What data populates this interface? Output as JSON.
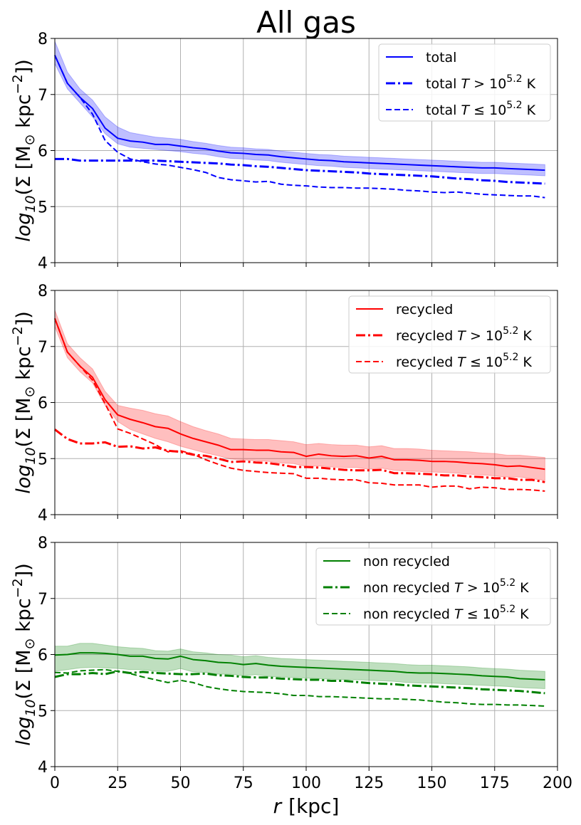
{
  "title": "All gas",
  "xlabel_r": "r",
  "xlabel_unit": "[kpc]",
  "ylabel": {
    "prefix_log": "log",
    "prefix_sub": "10",
    "body": "(Σ [M",
    "sun": "⊙",
    "unit": " kpc",
    "exp": "−2",
    "close": "])"
  },
  "x_ticks": [
    "0",
    "25",
    "50",
    "75",
    "100",
    "125",
    "150",
    "175",
    "200"
  ],
  "y_ticks": [
    "4",
    "5",
    "6",
    "7",
    "8"
  ],
  "temp_exponent": "5.2",
  "chart_data": [
    {
      "type": "line",
      "panel": "total",
      "color": "#0000ff",
      "xlim": [
        0,
        200
      ],
      "ylim": [
        4,
        8
      ],
      "grid": true,
      "legend_position": "top-right",
      "x": [
        0,
        5,
        10,
        15,
        20,
        25,
        30,
        35,
        40,
        45,
        50,
        55,
        60,
        65,
        70,
        75,
        80,
        85,
        90,
        95,
        100,
        105,
        110,
        115,
        120,
        125,
        130,
        135,
        140,
        145,
        150,
        155,
        160,
        165,
        170,
        175,
        180,
        185,
        190,
        195
      ],
      "series": [
        {
          "name": "total",
          "style": "solid",
          "legend": [
            "total",
            "",
            ""
          ],
          "values": [
            7.7,
            7.2,
            6.95,
            6.75,
            6.4,
            6.22,
            6.17,
            6.15,
            6.11,
            6.11,
            6.08,
            6.05,
            6.03,
            5.99,
            5.96,
            5.95,
            5.93,
            5.92,
            5.89,
            5.87,
            5.85,
            5.83,
            5.82,
            5.8,
            5.79,
            5.78,
            5.77,
            5.76,
            5.75,
            5.74,
            5.73,
            5.72,
            5.71,
            5.7,
            5.69,
            5.69,
            5.68,
            5.67,
            5.66,
            5.65
          ]
        },
        {
          "name": "total T > 10^5.2 K",
          "style": "dashdot",
          "legend": [
            "total ",
            "T",
            " > 10"
          ],
          "values": [
            5.85,
            5.85,
            5.82,
            5.82,
            5.82,
            5.82,
            5.82,
            5.82,
            5.82,
            5.81,
            5.8,
            5.79,
            5.78,
            5.77,
            5.75,
            5.74,
            5.72,
            5.71,
            5.69,
            5.67,
            5.65,
            5.64,
            5.63,
            5.62,
            5.61,
            5.59,
            5.58,
            5.57,
            5.56,
            5.55,
            5.54,
            5.52,
            5.5,
            5.49,
            5.47,
            5.46,
            5.44,
            5.43,
            5.42,
            5.41
          ]
        },
        {
          "name": "total T ≤ 10^5.2 K",
          "style": "dashed",
          "legend": [
            "total ",
            "T",
            " ≤ 10"
          ],
          "values": [
            7.7,
            7.2,
            6.95,
            6.65,
            6.18,
            5.97,
            5.85,
            5.8,
            5.76,
            5.74,
            5.7,
            5.66,
            5.61,
            5.52,
            5.48,
            5.46,
            5.44,
            5.45,
            5.4,
            5.38,
            5.37,
            5.35,
            5.34,
            5.34,
            5.33,
            5.33,
            5.32,
            5.31,
            5.29,
            5.28,
            5.26,
            5.25,
            5.26,
            5.24,
            5.22,
            5.21,
            5.2,
            5.19,
            5.19,
            5.16
          ]
        }
      ],
      "band": {
        "lower": [
          7.55,
          7.1,
          6.85,
          6.6,
          6.3,
          6.12,
          6.06,
          6.04,
          6.02,
          6.0,
          5.98,
          5.95,
          5.93,
          5.89,
          5.86,
          5.85,
          5.83,
          5.82,
          5.79,
          5.77,
          5.75,
          5.73,
          5.72,
          5.7,
          5.69,
          5.68,
          5.67,
          5.66,
          5.65,
          5.64,
          5.63,
          5.62,
          5.61,
          5.6,
          5.59,
          5.59,
          5.58,
          5.57,
          5.56,
          5.55
        ],
        "upper": [
          7.95,
          7.4,
          7.1,
          6.9,
          6.6,
          6.42,
          6.32,
          6.28,
          6.24,
          6.22,
          6.2,
          6.16,
          6.13,
          6.09,
          6.06,
          6.05,
          6.03,
          6.02,
          5.99,
          5.97,
          5.95,
          5.93,
          5.92,
          5.9,
          5.89,
          5.88,
          5.87,
          5.86,
          5.85,
          5.84,
          5.83,
          5.82,
          5.81,
          5.8,
          5.79,
          5.79,
          5.78,
          5.77,
          5.76,
          5.75
        ]
      }
    },
    {
      "type": "line",
      "panel": "recycled",
      "color": "#ff0000",
      "xlim": [
        0,
        200
      ],
      "ylim": [
        4,
        8
      ],
      "grid": true,
      "legend_position": "top-right",
      "x": [
        0,
        5,
        10,
        15,
        20,
        25,
        30,
        35,
        40,
        45,
        50,
        55,
        60,
        65,
        70,
        75,
        80,
        85,
        90,
        95,
        100,
        105,
        110,
        115,
        120,
        125,
        130,
        135,
        140,
        145,
        150,
        155,
        160,
        165,
        170,
        175,
        180,
        185,
        190,
        195
      ],
      "series": [
        {
          "name": "recycled",
          "style": "solid",
          "legend": [
            "recycled",
            "",
            ""
          ],
          "values": [
            7.5,
            6.9,
            6.65,
            6.45,
            6.05,
            5.78,
            5.7,
            5.64,
            5.57,
            5.54,
            5.44,
            5.36,
            5.3,
            5.24,
            5.16,
            5.16,
            5.15,
            5.15,
            5.12,
            5.11,
            5.04,
            5.08,
            5.05,
            5.04,
            5.05,
            5.01,
            5.04,
            4.98,
            4.98,
            4.97,
            4.95,
            4.95,
            4.94,
            4.92,
            4.91,
            4.89,
            4.86,
            4.87,
            4.84,
            4.81
          ]
        },
        {
          "name": "recycled T > 10^5.2 K",
          "style": "dashdot",
          "legend": [
            "recycled ",
            "T",
            " > 10"
          ],
          "values": [
            5.52,
            5.35,
            5.27,
            5.27,
            5.29,
            5.21,
            5.22,
            5.18,
            5.2,
            5.14,
            5.12,
            5.07,
            5.05,
            5.0,
            4.94,
            4.95,
            4.93,
            4.92,
            4.89,
            4.85,
            4.85,
            4.84,
            4.82,
            4.8,
            4.79,
            4.79,
            4.8,
            4.74,
            4.74,
            4.73,
            4.72,
            4.7,
            4.7,
            4.68,
            4.67,
            4.65,
            4.65,
            4.62,
            4.62,
            4.58
          ]
        },
        {
          "name": "recycled T ≤ 10^5.2 K",
          "style": "dashed",
          "legend": [
            "recycled ",
            "T",
            " ≤ 10"
          ],
          "values": [
            7.5,
            6.9,
            6.65,
            6.4,
            5.98,
            5.53,
            5.45,
            5.35,
            5.25,
            5.12,
            5.14,
            5.08,
            4.98,
            4.9,
            4.83,
            4.79,
            4.77,
            4.75,
            4.74,
            4.73,
            4.65,
            4.65,
            4.63,
            4.62,
            4.62,
            4.57,
            4.56,
            4.53,
            4.53,
            4.53,
            4.49,
            4.51,
            4.51,
            4.46,
            4.49,
            4.48,
            4.45,
            4.45,
            4.44,
            4.42
          ]
        }
      ],
      "band": {
        "lower": [
          7.35,
          6.8,
          6.55,
          6.35,
          5.95,
          5.66,
          5.52,
          5.44,
          5.36,
          5.3,
          5.22,
          5.16,
          5.1,
          5.05,
          4.99,
          4.98,
          4.96,
          4.95,
          4.92,
          4.91,
          4.86,
          4.87,
          4.85,
          4.84,
          4.84,
          4.81,
          4.83,
          4.79,
          4.78,
          4.77,
          4.76,
          4.75,
          4.74,
          4.72,
          4.71,
          4.69,
          4.67,
          4.67,
          4.64,
          4.61
        ],
        "upper": [
          7.65,
          7.05,
          6.8,
          6.6,
          6.2,
          5.95,
          5.9,
          5.86,
          5.8,
          5.76,
          5.66,
          5.57,
          5.5,
          5.44,
          5.36,
          5.35,
          5.34,
          5.34,
          5.32,
          5.3,
          5.25,
          5.27,
          5.25,
          5.24,
          5.24,
          5.21,
          5.23,
          5.18,
          5.18,
          5.17,
          5.15,
          5.14,
          5.13,
          5.12,
          5.1,
          5.09,
          5.06,
          5.06,
          5.04,
          5.02
        ]
      }
    },
    {
      "type": "line",
      "panel": "non recycled",
      "color": "#008000",
      "xlim": [
        0,
        200
      ],
      "ylim": [
        4,
        8
      ],
      "grid": true,
      "legend_position": "top-right",
      "x": [
        0,
        5,
        10,
        15,
        20,
        25,
        30,
        35,
        40,
        45,
        50,
        55,
        60,
        65,
        70,
        75,
        80,
        85,
        90,
        95,
        100,
        105,
        110,
        115,
        120,
        125,
        130,
        135,
        140,
        145,
        150,
        155,
        160,
        165,
        170,
        175,
        180,
        185,
        190,
        195
      ],
      "series": [
        {
          "name": "non recycled",
          "style": "solid",
          "legend": [
            "non recycled",
            "",
            ""
          ],
          "values": [
            5.99,
            6.0,
            6.03,
            6.03,
            6.02,
            6.0,
            5.97,
            5.97,
            5.93,
            5.92,
            5.97,
            5.91,
            5.89,
            5.86,
            5.85,
            5.82,
            5.84,
            5.81,
            5.79,
            5.78,
            5.77,
            5.76,
            5.75,
            5.74,
            5.73,
            5.72,
            5.71,
            5.7,
            5.68,
            5.67,
            5.67,
            5.66,
            5.65,
            5.64,
            5.62,
            5.61,
            5.6,
            5.57,
            5.56,
            5.55
          ]
        },
        {
          "name": "non recycled T > 10^5.2 K",
          "style": "dashdot",
          "legend": [
            "non recycled ",
            "T",
            " > 10"
          ],
          "values": [
            5.6,
            5.65,
            5.65,
            5.67,
            5.65,
            5.7,
            5.67,
            5.69,
            5.67,
            5.66,
            5.65,
            5.65,
            5.66,
            5.63,
            5.62,
            5.6,
            5.59,
            5.59,
            5.57,
            5.56,
            5.55,
            5.55,
            5.53,
            5.53,
            5.51,
            5.49,
            5.48,
            5.47,
            5.45,
            5.44,
            5.43,
            5.42,
            5.41,
            5.4,
            5.38,
            5.37,
            5.36,
            5.35,
            5.33,
            5.31
          ]
        },
        {
          "name": "non recycled T ≤ 10^5.2 K",
          "style": "dashed",
          "legend": [
            "non recycled ",
            "T",
            " ≤ 10"
          ],
          "values": [
            5.68,
            5.67,
            5.71,
            5.72,
            5.73,
            5.7,
            5.66,
            5.6,
            5.55,
            5.5,
            5.54,
            5.5,
            5.43,
            5.39,
            5.36,
            5.34,
            5.33,
            5.32,
            5.3,
            5.27,
            5.27,
            5.25,
            5.25,
            5.24,
            5.23,
            5.22,
            5.21,
            5.21,
            5.2,
            5.19,
            5.17,
            5.15,
            5.14,
            5.12,
            5.11,
            5.11,
            5.1,
            5.1,
            5.09,
            5.08
          ]
        }
      ],
      "band": {
        "lower": [
          5.7,
          5.73,
          5.76,
          5.77,
          5.76,
          5.75,
          5.73,
          5.73,
          5.7,
          5.7,
          5.75,
          5.69,
          5.68,
          5.65,
          5.65,
          5.62,
          5.64,
          5.61,
          5.6,
          5.59,
          5.58,
          5.57,
          5.56,
          5.55,
          5.55,
          5.54,
          5.53,
          5.52,
          5.5,
          5.49,
          5.49,
          5.48,
          5.47,
          5.46,
          5.45,
          5.44,
          5.43,
          5.41,
          5.4,
          5.39
        ],
        "upper": [
          6.15,
          6.15,
          6.2,
          6.2,
          6.17,
          6.14,
          6.12,
          6.11,
          6.07,
          6.06,
          6.1,
          6.05,
          6.03,
          6.0,
          5.99,
          5.96,
          5.98,
          5.95,
          5.93,
          5.92,
          5.91,
          5.9,
          5.89,
          5.88,
          5.87,
          5.86,
          5.85,
          5.84,
          5.82,
          5.81,
          5.81,
          5.8,
          5.79,
          5.78,
          5.76,
          5.75,
          5.74,
          5.72,
          5.71,
          5.7
        ]
      }
    }
  ]
}
